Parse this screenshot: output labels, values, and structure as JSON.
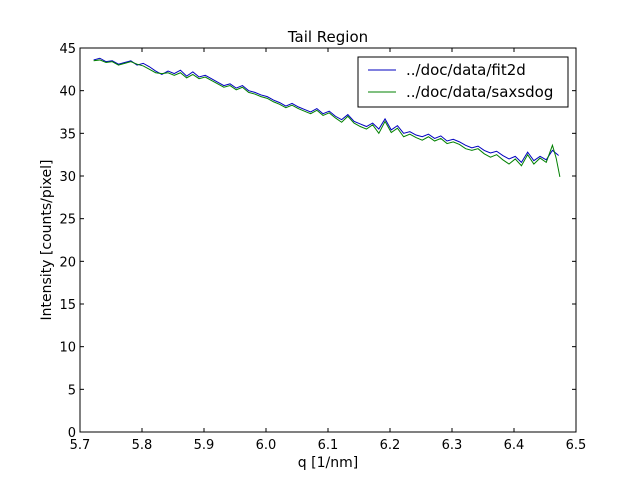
{
  "chart_data": {
    "type": "line",
    "title": "Tail Region",
    "xlabel": "q [1/nm]",
    "ylabel": "Intensity [counts/pixel]",
    "xlim": [
      5.7,
      6.5
    ],
    "ylim": [
      0,
      45
    ],
    "xticks": [
      "5.7",
      "5.8",
      "5.9",
      "6.0",
      "6.1",
      "6.2",
      "6.3",
      "6.4",
      "6.5"
    ],
    "yticks": [
      "0",
      "5",
      "10",
      "15",
      "20",
      "25",
      "30",
      "35",
      "40",
      "45"
    ],
    "grid": false,
    "legend_position": "top-right",
    "series": [
      {
        "name": "../doc/data/fit2d",
        "color": "#0000bf",
        "x": [
          5.722,
          5.732,
          5.742,
          5.752,
          5.762,
          5.772,
          5.782,
          5.792,
          5.802,
          5.812,
          5.822,
          5.832,
          5.842,
          5.852,
          5.862,
          5.872,
          5.882,
          5.892,
          5.902,
          5.912,
          5.922,
          5.932,
          5.942,
          5.952,
          5.962,
          5.972,
          5.982,
          5.992,
          6.002,
          6.012,
          6.022,
          6.032,
          6.042,
          6.052,
          6.062,
          6.072,
          6.082,
          6.092,
          6.102,
          6.112,
          6.122,
          6.132,
          6.142,
          6.152,
          6.162,
          6.172,
          6.182,
          6.192,
          6.202,
          6.212,
          6.222,
          6.232,
          6.242,
          6.252,
          6.262,
          6.272,
          6.282,
          6.292,
          6.302,
          6.312,
          6.322,
          6.332,
          6.342,
          6.352,
          6.362,
          6.372,
          6.382,
          6.392,
          6.402,
          6.412,
          6.422,
          6.432,
          6.442,
          6.452,
          6.462,
          6.472
        ],
        "y": [
          43.6,
          43.8,
          43.4,
          43.5,
          43.1,
          43.3,
          43.5,
          43.0,
          43.2,
          42.8,
          42.3,
          41.9,
          42.3,
          42.0,
          42.4,
          41.7,
          42.2,
          41.6,
          41.8,
          41.4,
          41.0,
          40.6,
          40.8,
          40.3,
          40.6,
          40.0,
          39.8,
          39.5,
          39.3,
          38.9,
          38.6,
          38.2,
          38.5,
          38.1,
          37.8,
          37.5,
          37.9,
          37.3,
          37.6,
          37.0,
          36.6,
          37.2,
          36.4,
          36.1,
          35.8,
          36.2,
          35.5,
          36.7,
          35.4,
          35.9,
          35.0,
          35.2,
          34.8,
          34.6,
          34.9,
          34.4,
          34.7,
          34.1,
          34.3,
          34.0,
          33.6,
          33.3,
          33.5,
          33.0,
          32.7,
          32.9,
          32.4,
          32.0,
          32.3,
          31.6,
          32.8,
          31.8,
          32.3,
          31.9,
          33.0,
          32.4
        ]
      },
      {
        "name": "../doc/data/saxsdog",
        "color": "#008000",
        "x": [
          5.722,
          5.732,
          5.742,
          5.752,
          5.762,
          5.772,
          5.782,
          5.792,
          5.802,
          5.812,
          5.822,
          5.832,
          5.842,
          5.852,
          5.862,
          5.872,
          5.882,
          5.892,
          5.902,
          5.912,
          5.922,
          5.932,
          5.942,
          5.952,
          5.962,
          5.972,
          5.982,
          5.992,
          6.002,
          6.012,
          6.022,
          6.032,
          6.042,
          6.052,
          6.062,
          6.072,
          6.082,
          6.092,
          6.102,
          6.112,
          6.122,
          6.132,
          6.142,
          6.152,
          6.162,
          6.172,
          6.182,
          6.192,
          6.202,
          6.212,
          6.222,
          6.232,
          6.242,
          6.252,
          6.262,
          6.272,
          6.282,
          6.292,
          6.302,
          6.312,
          6.322,
          6.332,
          6.342,
          6.352,
          6.362,
          6.372,
          6.382,
          6.392,
          6.402,
          6.412,
          6.422,
          6.432,
          6.442,
          6.452,
          6.462,
          6.468,
          6.474
        ],
        "y": [
          43.5,
          43.6,
          43.3,
          43.4,
          43.0,
          43.2,
          43.4,
          43.1,
          42.9,
          42.5,
          42.1,
          42.0,
          42.1,
          41.8,
          42.1,
          41.5,
          41.9,
          41.4,
          41.6,
          41.2,
          40.8,
          40.4,
          40.6,
          40.1,
          40.4,
          39.8,
          39.6,
          39.3,
          39.1,
          38.7,
          38.4,
          38.0,
          38.3,
          37.9,
          37.6,
          37.3,
          37.7,
          37.1,
          37.4,
          36.8,
          36.3,
          37.0,
          36.2,
          35.8,
          35.5,
          36.0,
          35.0,
          36.4,
          35.1,
          35.6,
          34.6,
          34.9,
          34.5,
          34.2,
          34.6,
          34.1,
          34.4,
          33.8,
          34.0,
          33.7,
          33.2,
          33.0,
          33.2,
          32.6,
          32.2,
          32.5,
          31.9,
          31.4,
          32.0,
          31.2,
          32.5,
          31.4,
          32.1,
          31.6,
          33.6,
          32.1,
          29.9
        ]
      }
    ]
  }
}
